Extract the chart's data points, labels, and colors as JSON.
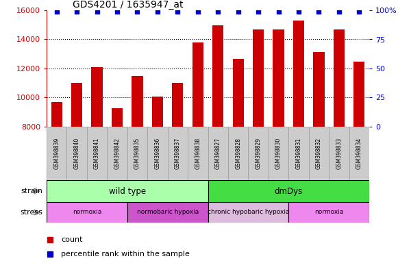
{
  "title": "GDS4201 / 1635947_at",
  "samples": [
    "GSM398839",
    "GSM398840",
    "GSM398841",
    "GSM398842",
    "GSM398835",
    "GSM398836",
    "GSM398837",
    "GSM398838",
    "GSM398827",
    "GSM398828",
    "GSM398829",
    "GSM398830",
    "GSM398831",
    "GSM398832",
    "GSM398833",
    "GSM398834"
  ],
  "counts": [
    9700,
    11000,
    12100,
    9250,
    11500,
    10050,
    11000,
    13800,
    14950,
    12650,
    14700,
    14700,
    15300,
    13150,
    14700,
    12450
  ],
  "percentile_ranks": [
    99,
    99,
    99,
    99,
    99,
    99,
    99,
    99,
    99,
    99,
    99,
    99,
    99,
    99,
    99,
    99
  ],
  "bar_color": "#cc0000",
  "dot_color": "#0000cc",
  "ylim_left": [
    8000,
    16000
  ],
  "ylim_right": [
    0,
    100
  ],
  "yticks_left": [
    8000,
    10000,
    12000,
    14000,
    16000
  ],
  "yticks_right": [
    0,
    25,
    50,
    75,
    100
  ],
  "yticklabels_right": [
    "0",
    "25",
    "50",
    "75",
    "100%"
  ],
  "strain_groups": [
    {
      "label": "wild type",
      "start": 0,
      "end": 8,
      "color": "#aaffaa"
    },
    {
      "label": "dmDys",
      "start": 8,
      "end": 16,
      "color": "#44dd44"
    }
  ],
  "stress_groups": [
    {
      "label": "normoxia",
      "start": 0,
      "end": 4,
      "color": "#ee88ee"
    },
    {
      "label": "normobaric hypoxia",
      "start": 4,
      "end": 8,
      "color": "#cc55cc"
    },
    {
      "label": "chronic hypobaric hypoxia",
      "start": 8,
      "end": 12,
      "color": "#ddbbdd"
    },
    {
      "label": "normoxia",
      "start": 12,
      "end": 16,
      "color": "#ee88ee"
    }
  ],
  "left_label_color": "#cc0000",
  "right_label_color": "#0000cc",
  "tick_bg_color": "#cccccc",
  "tick_border_color": "#999999"
}
